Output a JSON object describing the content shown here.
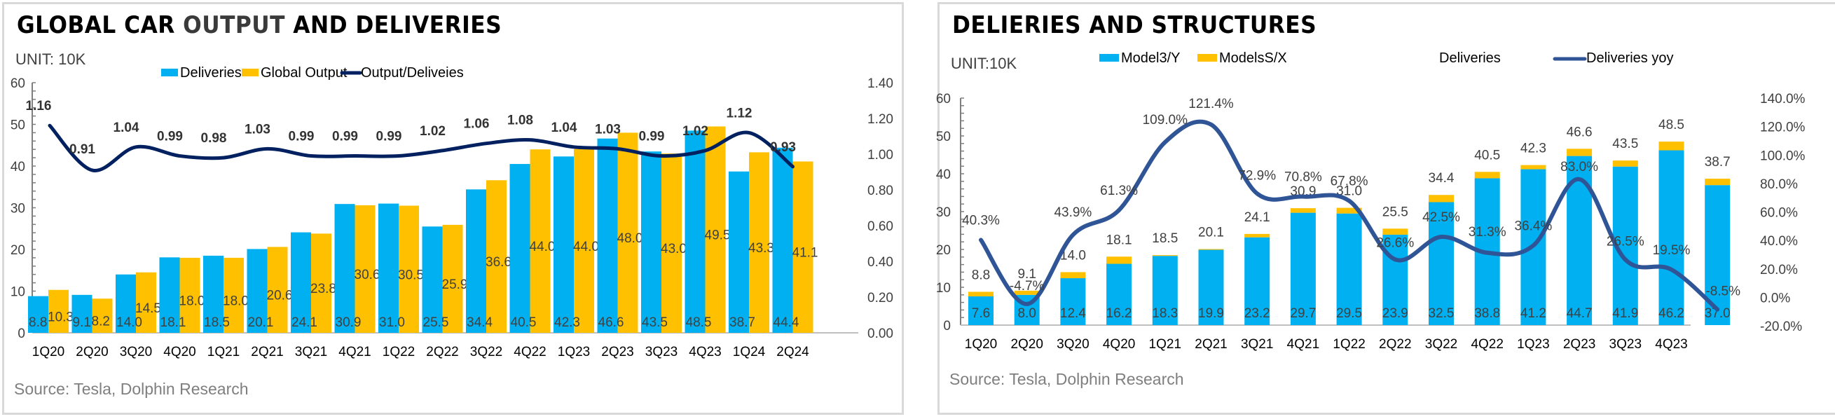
{
  "chart_data": [
    {
      "type": "bar",
      "title_part1": "GLOBAL CAR ",
      "title_part2": "OUTPUT",
      "title_part3": " AND DELIVERIES",
      "unit": "UNIT:  10K",
      "source": "Source: Tesla, Dolphin Research",
      "categories": [
        "1Q20",
        "2Q20",
        "3Q20",
        "4Q20",
        "1Q21",
        "2Q21",
        "3Q21",
        "4Q21",
        "1Q22",
        "2Q22",
        "3Q22",
        "4Q22",
        "1Q23",
        "2Q23",
        "3Q23",
        "4Q23",
        "1Q24",
        "2Q24"
      ],
      "series": [
        {
          "name": "Deliveries",
          "type": "bar",
          "axis": "left",
          "color": "#00b0f0",
          "values": [
            8.8,
            9.1,
            14.0,
            18.1,
            18.5,
            20.1,
            24.1,
            30.9,
            31.0,
            25.5,
            34.4,
            40.5,
            42.3,
            46.6,
            43.5,
            48.5,
            38.7,
            44.4
          ],
          "labels": [
            "8.8",
            "9.1",
            "14.0",
            "18.1",
            "18.5",
            "20.1",
            "24.1",
            "30.9",
            "31.0",
            "25.5",
            "34.4",
            "40.5",
            "42.3",
            "46.6",
            "43.5",
            "48.5",
            "38.7",
            "44.4"
          ]
        },
        {
          "name": "Global Output",
          "type": "bar",
          "axis": "left",
          "color": "#ffc000",
          "values": [
            10.3,
            8.2,
            14.5,
            18.0,
            18.0,
            20.6,
            23.8,
            30.6,
            30.5,
            25.9,
            36.6,
            44.0,
            44.08,
            48.0,
            43.0,
            49.5,
            43.3,
            41.1
          ],
          "labels": [
            "10.3",
            "8.2",
            "14.5",
            "18.0",
            "18.0",
            "20.6",
            "23.8",
            "30.6",
            "30.5",
            "25.9",
            "36.6",
            "44.0",
            "44.08",
            "48.0",
            "43.0",
            "49.5",
            "43.3",
            "41.1"
          ]
        },
        {
          "name": "Output/Deliveies",
          "type": "line",
          "axis": "right",
          "color": "#002060",
          "values": [
            1.16,
            0.91,
            1.04,
            0.99,
            0.98,
            1.03,
            0.99,
            0.99,
            0.99,
            1.02,
            1.06,
            1.08,
            1.04,
            1.03,
            0.99,
            1.02,
            1.12,
            0.93
          ],
          "labels": [
            "1.16",
            "0.91",
            "1.04",
            "0.99",
            "0.98",
            "1.03",
            "0.99",
            "0.99",
            "0.99",
            "1.02",
            "1.06",
            "1.08",
            "1.04",
            "1.03",
            "0.99",
            "1.02",
            "1.12",
            "0.93"
          ]
        }
      ],
      "ylim": [
        0,
        60
      ],
      "yticks": [
        "0",
        "10",
        "20",
        "30",
        "40",
        "50",
        "60"
      ],
      "y2lim": [
        0,
        1.4
      ],
      "y2ticks": [
        "0.00",
        "0.20",
        "0.40",
        "0.60",
        "0.80",
        "1.00",
        "1.20",
        "1.40"
      ],
      "legend": "top-center",
      "grid": false
    },
    {
      "type": "bar",
      "title": "DELIERIES AND STRUCTURES",
      "unit": "UNIT:10K",
      "source": "Source: Tesla, Dolphin Research",
      "categories": [
        "1Q20",
        "2Q20",
        "3Q20",
        "4Q20",
        "1Q21",
        "2Q21",
        "3Q21",
        "4Q21",
        "1Q22",
        "2Q22",
        "3Q22",
        "4Q22",
        "1Q23",
        "2Q23",
        "3Q23",
        "4Q23",
        ""
      ],
      "stacked": true,
      "series": [
        {
          "name": "Model3/Y",
          "type": "bar",
          "axis": "left",
          "color": "#00b0f0",
          "values": [
            7.6,
            8.0,
            12.4,
            16.2,
            18.3,
            19.9,
            23.2,
            29.7,
            29.5,
            23.9,
            32.5,
            38.8,
            41.2,
            44.7,
            41.9,
            46.2,
            37.0
          ],
          "labels": [
            "7.6",
            "8.0",
            "12.4",
            "16.2",
            "18.3",
            "19.9",
            "23.2",
            "29.7",
            "29.5",
            "23.9",
            "32.5",
            "38.8",
            "41.2",
            "44.7",
            "41.9",
            "46.2",
            "37.0"
          ]
        },
        {
          "name": "ModelsS/X",
          "type": "bar",
          "axis": "left",
          "color": "#ffc000",
          "values": [
            1.2,
            1.1,
            1.6,
            1.9,
            0.2,
            0.2,
            0.9,
            1.2,
            1.5,
            1.6,
            1.9,
            1.7,
            1.1,
            1.9,
            1.6,
            2.3,
            1.7
          ]
        },
        {
          "name": "Deliveries",
          "type": "total-label",
          "axis": "left",
          "values": [
            8.8,
            9.1,
            14.0,
            18.1,
            18.5,
            20.1,
            24.1,
            30.9,
            31.0,
            25.5,
            34.4,
            40.5,
            42.3,
            46.6,
            43.5,
            48.5,
            38.7
          ],
          "labels": [
            "8.8",
            "9.1",
            "14.0",
            "18.1",
            "18.5",
            "20.1",
            "24.1",
            "30.9",
            "31.0",
            "25.5",
            "34.4",
            "40.5",
            "42.3",
            "46.6",
            "43.5",
            "48.5",
            "38.7"
          ]
        },
        {
          "name": "Deliveries yoy",
          "type": "line",
          "axis": "right",
          "color": "#2f5597",
          "values": [
            40.3,
            -4.7,
            43.9,
            61.3,
            109.0,
            121.4,
            72.9,
            70.8,
            67.8,
            26.6,
            42.5,
            31.3,
            36.4,
            83.0,
            26.5,
            19.5,
            -8.5
          ],
          "labels": [
            "40.3%",
            "-4.7%",
            "43.9%",
            "61.3%",
            "109.0%",
            "121.4%",
            "72.9%",
            "70.8%",
            "67.8%",
            "26.6%",
            "42.5%",
            "31.3%",
            "36.4%",
            "83.0%",
            "26.5%",
            "19.5%",
            "-8.5%"
          ]
        }
      ],
      "ylim": [
        0,
        60
      ],
      "yticks": [
        "0",
        "10",
        "20",
        "30",
        "40",
        "50",
        "60"
      ],
      "y2lim": [
        -20,
        140
      ],
      "y2ticks": [
        "-20.0%",
        "0.0%",
        "20.0%",
        "40.0%",
        "60.0%",
        "80.0%",
        "100.0%",
        "120.0%",
        "140.0%"
      ],
      "legend": "top-center",
      "grid": false
    }
  ]
}
